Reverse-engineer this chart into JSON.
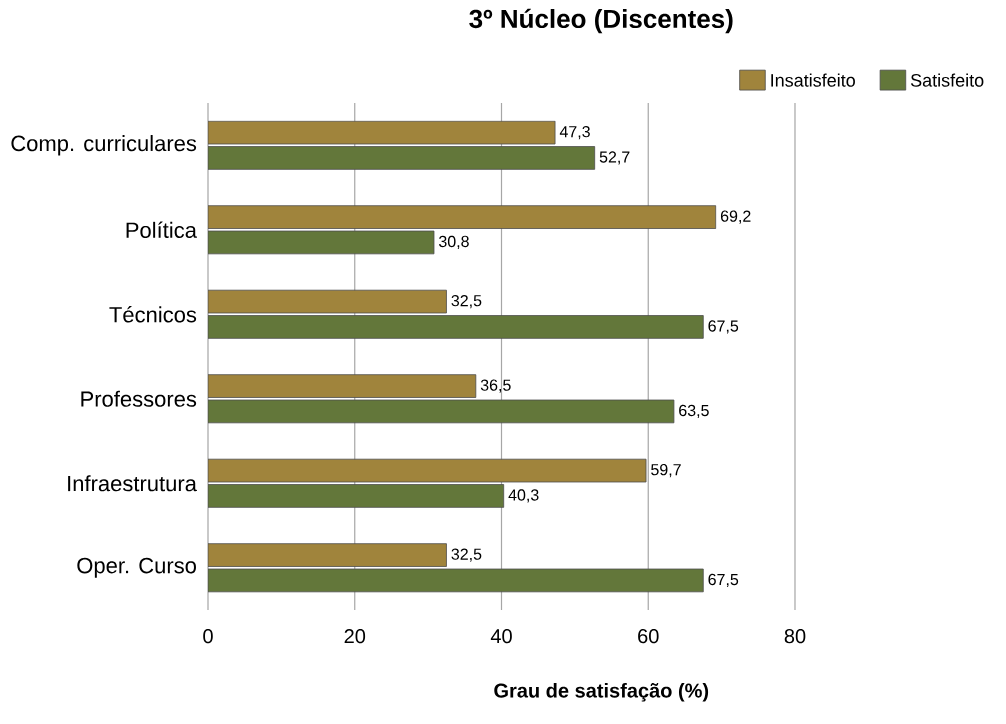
{
  "chart_data": {
    "type": "bar",
    "orientation": "horizontal",
    "title": "3º Núcleo (Discentes)",
    "xlabel": "Grau de satisfação (%)",
    "categories": [
      "Comp. curriculares",
      "Política",
      "Técnicos",
      "Professores",
      "Infraestrutura",
      "Oper. Curso"
    ],
    "series": [
      {
        "name": "Insatisfeito",
        "color": "#a0843c",
        "values": [
          47.3,
          69.2,
          32.5,
          36.5,
          59.7,
          32.5
        ],
        "value_labels": [
          "47,3",
          "69,2",
          "32,5",
          "36,5",
          "59,7",
          "32,5"
        ]
      },
      {
        "name": "Satisfeito",
        "color": "#63773a",
        "values": [
          52.7,
          30.8,
          67.5,
          63.5,
          40.3,
          67.5
        ],
        "value_labels": [
          "52,7",
          "30,8",
          "67,5",
          "63,5",
          "40,3",
          "67,5"
        ]
      }
    ],
    "xlim": [
      0,
      80
    ],
    "xticks": [
      0,
      20,
      40,
      60,
      80
    ],
    "grid": "x",
    "legend": "top right"
  }
}
